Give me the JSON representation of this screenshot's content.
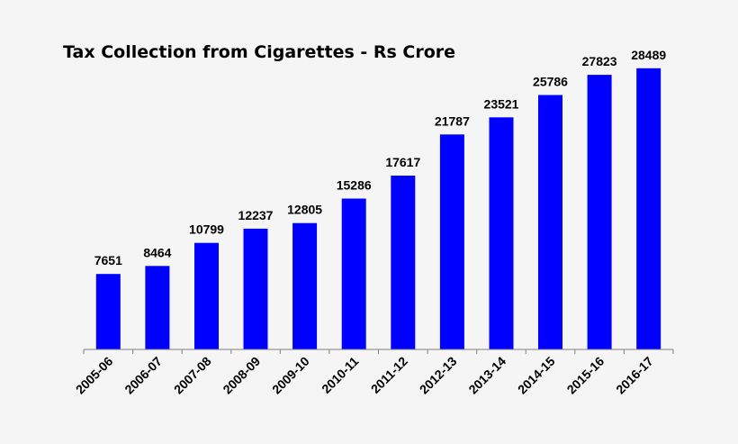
{
  "chart_data": {
    "type": "bar",
    "title": "Tax Collection from Cigarettes - Rs Crore",
    "xlabel": "",
    "ylabel": "",
    "categories": [
      "2005-06",
      "2006-07",
      "2007-08",
      "2008-09",
      "2009-10",
      "2010-11",
      "2011-12",
      "2012-13",
      "2013-14",
      "2014-15",
      "2015-16",
      "2016-17"
    ],
    "series": [
      {
        "values": [
          7651,
          8464,
          10799,
          12237,
          12805,
          15286,
          17617,
          21787,
          23521,
          25786,
          27823,
          28489
        ]
      }
    ],
    "ylim": [
      0,
      35000
    ],
    "grid": false,
    "data_labels": true,
    "bar_color": "#0000ff",
    "axis_color": "#808080",
    "background": "#f5f5f5"
  }
}
